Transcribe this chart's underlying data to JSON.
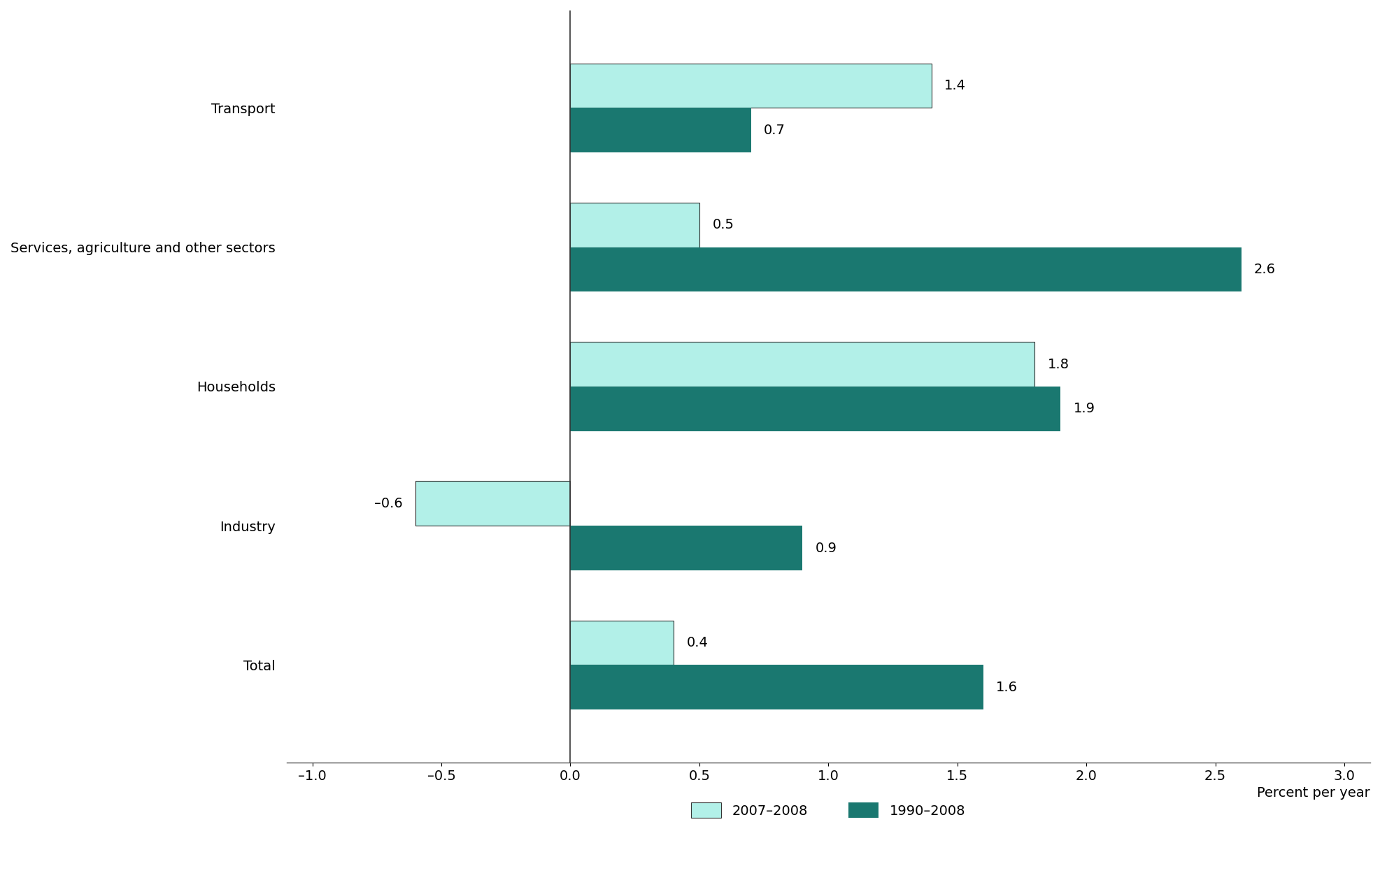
{
  "categories_top_to_bottom": [
    "Transport",
    "Services, agriculture and other sectors",
    "Households",
    "Industry",
    "Total"
  ],
  "values_2007_2008_top_to_bottom": [
    1.4,
    0.5,
    1.8,
    -0.6,
    0.4
  ],
  "values_1990_2008_top_to_bottom": [
    0.7,
    2.6,
    1.9,
    0.9,
    1.6
  ],
  "color_2007_2008": "#b2f0e8",
  "color_1990_2008": "#1a7870",
  "bar_height": 0.32,
  "xlim": [
    -1.1,
    3.1
  ],
  "xticks": [
    -1.0,
    -0.5,
    0.0,
    0.5,
    1.0,
    1.5,
    2.0,
    2.5,
    3.0
  ],
  "xlabel": "Percent per year",
  "legend_labels": [
    "2007–2008",
    "1990–2008"
  ],
  "background_color": "#ffffff",
  "tick_fontsize": 14,
  "xlabel_fontsize": 14,
  "annotation_fontsize": 14,
  "category_fontsize": 14,
  "legend_fontsize": 14,
  "annotation_neg_prefix": "–0.6"
}
